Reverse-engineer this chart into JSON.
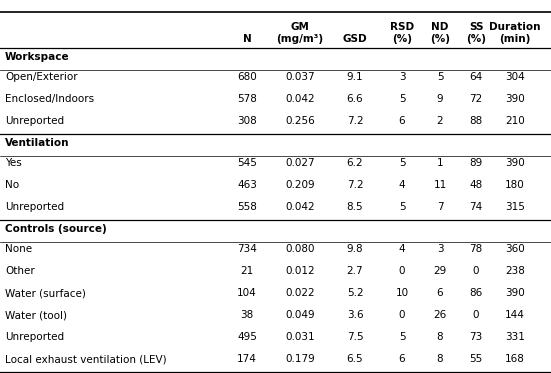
{
  "sections": [
    {
      "header": "Workspace",
      "rows": [
        [
          "Open/Exterior",
          "680",
          "0.037",
          "9.1",
          "3",
          "5",
          "64",
          "304"
        ],
        [
          "Enclosed/Indoors",
          "578",
          "0.042",
          "6.6",
          "5",
          "9",
          "72",
          "390"
        ],
        [
          "Unreported",
          "308",
          "0.256",
          "7.2",
          "6",
          "2",
          "88",
          "210"
        ]
      ]
    },
    {
      "header": "Ventilation",
      "rows": [
        [
          "Yes",
          "545",
          "0.027",
          "6.2",
          "5",
          "1",
          "89",
          "390"
        ],
        [
          "No",
          "463",
          "0.209",
          "7.2",
          "4",
          "11",
          "48",
          "180"
        ],
        [
          "Unreported",
          "558",
          "0.042",
          "8.5",
          "5",
          "7",
          "74",
          "315"
        ]
      ]
    },
    {
      "header": "Controls (source)",
      "rows": [
        [
          "None",
          "734",
          "0.080",
          "9.8",
          "4",
          "3",
          "78",
          "360"
        ],
        [
          "Other",
          "21",
          "0.012",
          "2.7",
          "0",
          "29",
          "0",
          "238"
        ],
        [
          "Water (surface)",
          "104",
          "0.022",
          "5.2",
          "10",
          "6",
          "86",
          "390"
        ],
        [
          "Water (tool)",
          "38",
          "0.049",
          "3.6",
          "0",
          "26",
          "0",
          "144"
        ],
        [
          "Unreported",
          "495",
          "0.031",
          "7.5",
          "5",
          "8",
          "73",
          "331"
        ],
        [
          "Local exhaust ventilation (LEV)",
          "174",
          "0.179",
          "6.5",
          "6",
          "8",
          "55",
          "168"
        ]
      ]
    }
  ],
  "col_header_top": [
    "",
    "GM",
    "",
    "RSD",
    "ND",
    "SS",
    "Duration"
  ],
  "col_header_bot": [
    "N",
    "(mg/m³)",
    "GSD",
    "(%)",
    "(%)",
    "(%)",
    "(min)"
  ],
  "bg_color": "#ffffff",
  "text_color": "#000000",
  "fs": 7.5
}
